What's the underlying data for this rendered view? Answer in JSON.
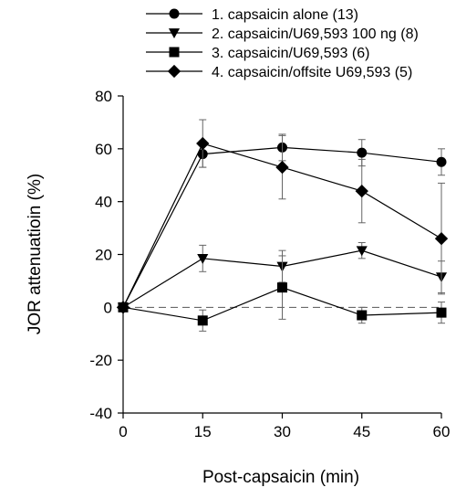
{
  "chart_data": {
    "type": "line",
    "title": "",
    "xlabel": "Post-capsaicin (min)",
    "ylabel": "JOR attenuatioin (%)",
    "x": [
      0,
      15,
      30,
      45,
      60
    ],
    "xlim": [
      0,
      60
    ],
    "ylim": [
      -40,
      80
    ],
    "xticks": [
      0,
      15,
      30,
      45,
      60
    ],
    "yticks": [
      -40,
      -20,
      0,
      20,
      40,
      60,
      80
    ],
    "grid": false,
    "legend_position": "top",
    "reference_line": {
      "y": 0,
      "style": "dashed"
    },
    "series": [
      {
        "name": "1. capsaicin alone (13)",
        "marker": "circle",
        "values": [
          0,
          58,
          60.5,
          58.5,
          55
        ],
        "errors": [
          0,
          5,
          5,
          5,
          5
        ]
      },
      {
        "name": "2. capsaicin/U69,593 100 ng (8)",
        "marker": "triangle-down",
        "values": [
          0,
          18.5,
          15.5,
          21.5,
          11.5
        ],
        "errors": [
          0,
          5,
          6,
          3,
          6
        ]
      },
      {
        "name": "3. capsaicin/U69,593 (6)",
        "marker": "square",
        "values": [
          0,
          -5,
          7.5,
          -3,
          -2
        ],
        "errors": [
          0,
          4,
          12,
          3,
          4
        ]
      },
      {
        "name": "4. capsaicin/offsite U69,593 (5)",
        "marker": "diamond",
        "values": [
          0,
          62,
          53,
          44,
          26
        ],
        "errors": [
          0,
          9,
          12,
          12,
          21
        ]
      }
    ]
  }
}
